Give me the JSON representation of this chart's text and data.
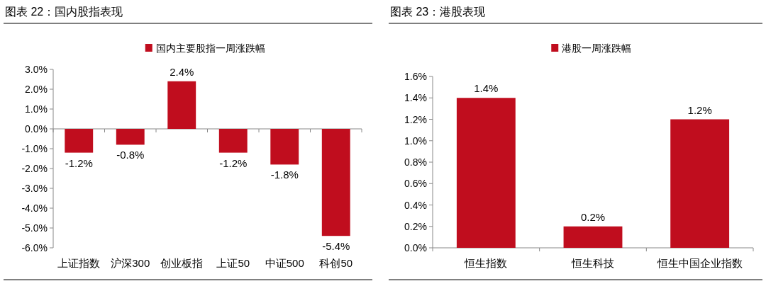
{
  "chart_data": [
    {
      "type": "bar",
      "title": "图表 22：国内股指表现",
      "categories": [
        "上证指数",
        "沪深300",
        "创业板指",
        "上证50",
        "中证500",
        "科创50"
      ],
      "series": [
        {
          "name": "国内主要股指一周涨跌幅",
          "color": "#c00d1e",
          "values": [
            -1.2,
            -0.8,
            2.4,
            -1.2,
            -1.8,
            -5.4
          ]
        }
      ],
      "ylim": [
        -6,
        3
      ],
      "yticks": [
        {
          "value": -6,
          "label": "-6.0%"
        },
        {
          "value": -5,
          "label": "-5.0%"
        },
        {
          "value": -4,
          "label": "-4.0%"
        },
        {
          "value": -3,
          "label": "-3.0%"
        },
        {
          "value": -2,
          "label": "-2.0%"
        },
        {
          "value": -1,
          "label": "-1.0%"
        },
        {
          "value": 0,
          "label": "0.0%"
        },
        {
          "value": 1,
          "label": "1.0%"
        },
        {
          "value": 2,
          "label": "2.0%"
        },
        {
          "value": 3,
          "label": "3.0%"
        }
      ],
      "value_labels": [
        "-1.2%",
        "-0.8%",
        "2.4%",
        "-1.2%",
        "-1.8%",
        "-5.4%"
      ],
      "legend": "top"
    },
    {
      "type": "bar",
      "title": "图表 23：港股表现",
      "categories": [
        "恒生指数",
        "恒生科技",
        "恒生中国企业指数"
      ],
      "series": [
        {
          "name": "港股一周涨跌幅",
          "color": "#c00d1e",
          "values": [
            1.4,
            0.2,
            1.2
          ]
        }
      ],
      "ylim": [
        0,
        1.6
      ],
      "yticks": [
        {
          "value": 0,
          "label": "0.0%"
        },
        {
          "value": 0.2,
          "label": "0.2%"
        },
        {
          "value": 0.4,
          "label": "0.4%"
        },
        {
          "value": 0.6,
          "label": "0.6%"
        },
        {
          "value": 0.8,
          "label": "0.8%"
        },
        {
          "value": 1.0,
          "label": "1.0%"
        },
        {
          "value": 1.2,
          "label": "1.2%"
        },
        {
          "value": 1.4,
          "label": "1.4%"
        },
        {
          "value": 1.6,
          "label": "1.6%"
        }
      ],
      "value_labels": [
        "1.4%",
        "0.2%",
        "1.2%"
      ],
      "legend": "top"
    }
  ]
}
